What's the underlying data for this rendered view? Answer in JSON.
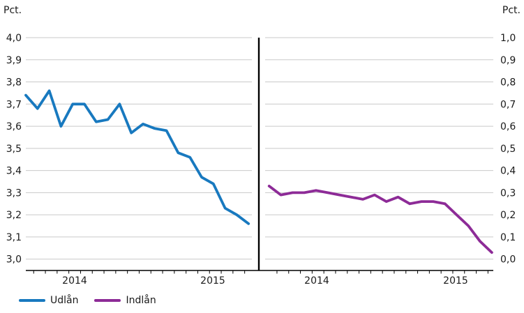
{
  "style": {
    "background": "#FFFFFF",
    "grid_color": "#C9C9C9",
    "axis_color": "#000000",
    "divider_color": "#000000",
    "text_color": "#1A1A1A"
  },
  "legend": {
    "items": [
      {
        "label": "Udlån",
        "color": "#1879BF"
      },
      {
        "label": "Indlån",
        "color": "#8D2B97"
      }
    ]
  },
  "chart_data": [
    {
      "type": "line",
      "name": "Udlån",
      "unit_label": "Pct.",
      "color": "#1879BF",
      "ylim": [
        3.0,
        4.0
      ],
      "y_ticks": [
        "4,0",
        "3,9",
        "3,8",
        "3,7",
        "3,6",
        "3,5",
        "3,4",
        "3,3",
        "3,2",
        "3,1",
        "3,0"
      ],
      "x_year_labels": [
        "2014",
        "2015"
      ],
      "x_note": "monthly points, late 2013 through mid 2015",
      "values": [
        3.74,
        3.68,
        3.76,
        3.6,
        3.7,
        3.7,
        3.62,
        3.63,
        3.7,
        3.57,
        3.61,
        3.59,
        3.58,
        3.48,
        3.46,
        3.37,
        3.34,
        3.23,
        3.2,
        3.16
      ]
    },
    {
      "type": "line",
      "name": "Indlån",
      "unit_label": "Pct.",
      "color": "#8D2B97",
      "ylim": [
        0.0,
        1.0
      ],
      "y_ticks": [
        "1,0",
        "0,9",
        "0,8",
        "0,7",
        "0,6",
        "0,5",
        "0,4",
        "0,3",
        "0,2",
        "0,1",
        "0,0"
      ],
      "x_year_labels": [
        "2014",
        "2015"
      ],
      "x_note": "monthly points, late 2013 through mid 2015",
      "values": [
        0.33,
        0.29,
        0.3,
        0.3,
        0.31,
        0.3,
        0.29,
        0.28,
        0.27,
        0.29,
        0.26,
        0.28,
        0.25,
        0.26,
        0.26,
        0.25,
        0.2,
        0.15,
        0.08,
        0.03
      ]
    }
  ]
}
